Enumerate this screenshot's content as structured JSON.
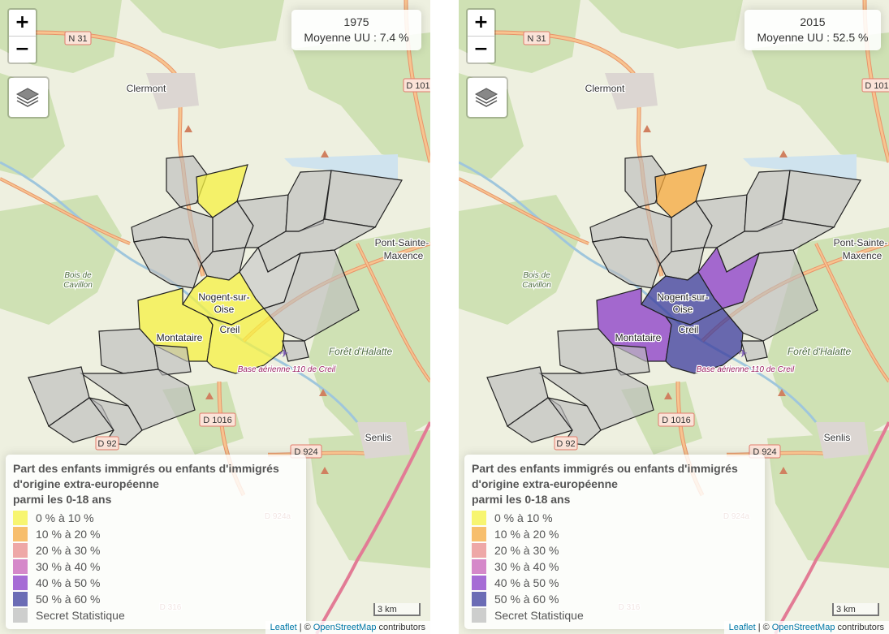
{
  "maps": [
    {
      "year": "1975",
      "average": "Moyenne UU : 7.4 %",
      "commune_colors": {
        "north-yellow": "#f5f242",
        "nogent": "#f5f242",
        "montataire": "#f5f242",
        "creil": "#f5f242",
        "northeast": "#c8c8c8"
      }
    },
    {
      "year": "2015",
      "average": "Moyenne UU : 52.5 %",
      "commune_colors": {
        "north-yellow": "#f5a83c",
        "nogent": "#3b3b9e",
        "montataire": "#8a3bc8",
        "creil": "#3b3b9e",
        "northeast": "#8a3bc8"
      }
    }
  ],
  "controls": {
    "zoom_in": "+",
    "zoom_out": "−"
  },
  "place_labels": {
    "n31": "N 31",
    "d101": "D 101",
    "clermont": "Clermont",
    "pont_sainte": "Pont-Sainte-",
    "maxence": "Maxence",
    "bois": "Bois de",
    "cavillon": "Cavillon",
    "nogent_1": "Nogent-sur-",
    "nogent_2": "Oise",
    "creil": "Creil",
    "montataire": "Montataire",
    "foret": "Forêt d'Halatte",
    "base": "Base aérienne 110 de Creil",
    "d1016": "D 1016",
    "d924": "D 924",
    "d924a": "D 924a",
    "senlis": "Senlis",
    "d316": "D 316",
    "d92": "D 92"
  },
  "legend": {
    "title_line1": "Part des enfants immigrés ou enfants d'immigrés",
    "title_line2": "d'origine extra-européenne",
    "title_line3": "parmi les 0-18 ans",
    "items": [
      {
        "label": "0 % à 10 %",
        "color": "#f5f242"
      },
      {
        "label": "10 % à 20 %",
        "color": "#f5a83c"
      },
      {
        "label": "20 % à 30 %",
        "color": "#e98b8b"
      },
      {
        "label": "30 % à 40 %",
        "color": "#c860b8"
      },
      {
        "label": "40 % à 50 %",
        "color": "#8a3bc8"
      },
      {
        "label": "50 % à 60 %",
        "color": "#3b3b9e"
      },
      {
        "label": "Secret Statistique",
        "color": "#bdbdbd"
      }
    ]
  },
  "scale_label": "3 km",
  "attribution": {
    "leaflet": "Leaflet",
    "sep": "| ©",
    "osm": "OpenStreetMap",
    "contributors": "contributors"
  }
}
